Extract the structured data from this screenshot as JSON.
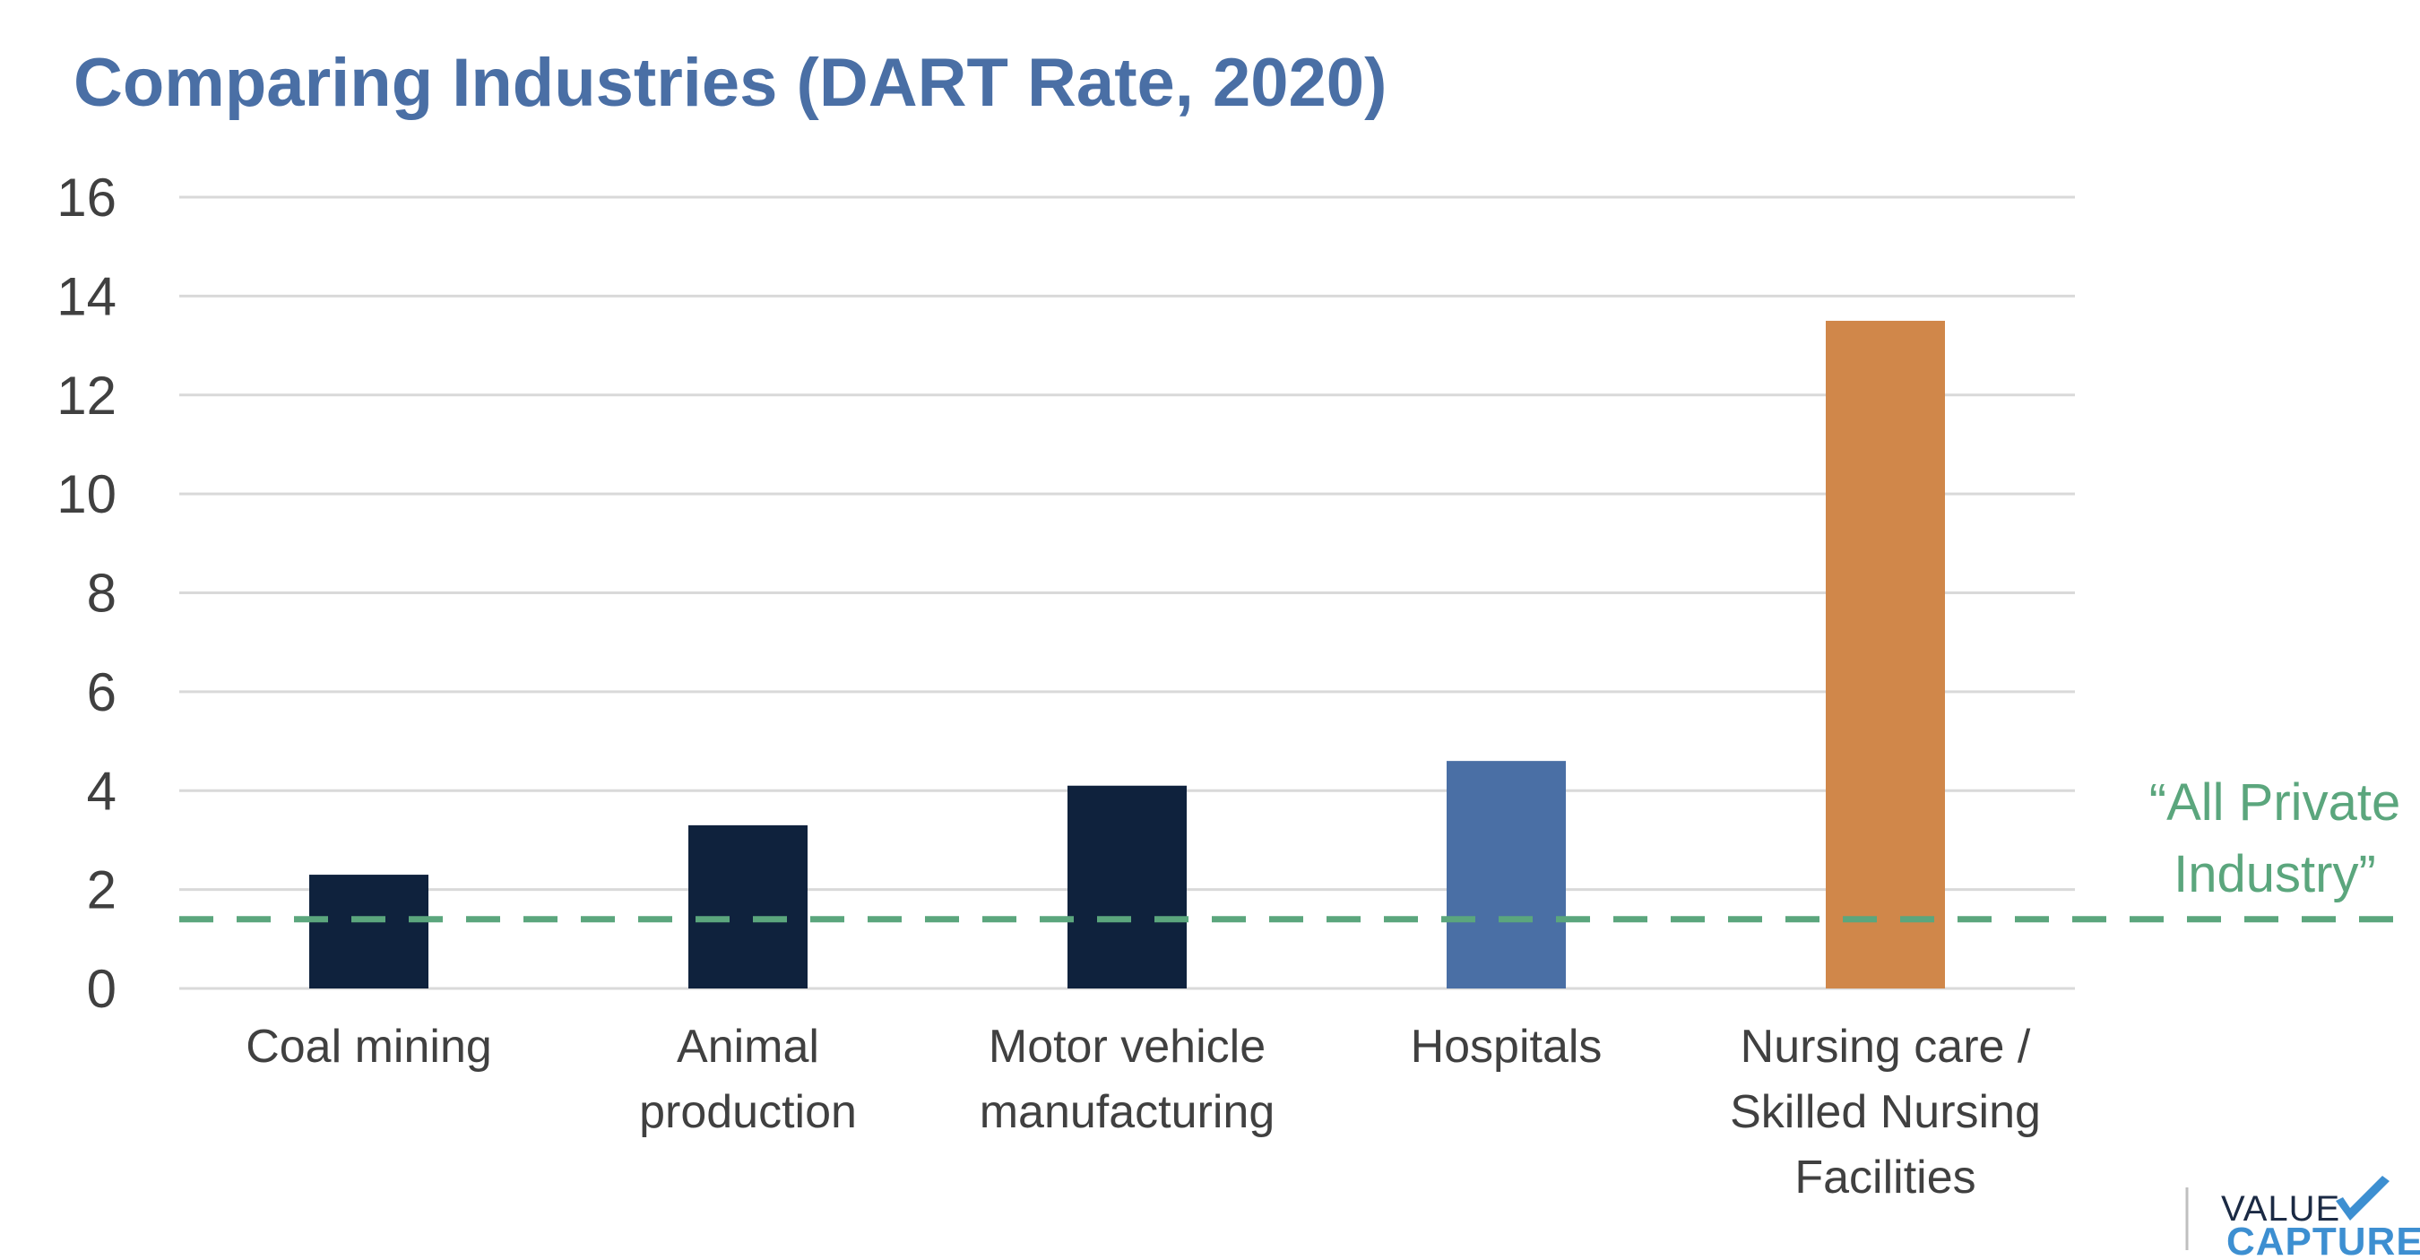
{
  "chart_data": {
    "type": "bar",
    "title": "Comparing Industries (DART Rate, 2020)",
    "categories": [
      [
        "Coal mining"
      ],
      [
        "Animal",
        "production"
      ],
      [
        "Motor vehicle",
        "manufacturing"
      ],
      [
        "Hospitals"
      ],
      [
        "Nursing care /",
        "Skilled Nursing",
        "Facilities"
      ]
    ],
    "values": [
      2.3,
      3.3,
      4.1,
      4.6,
      13.5
    ],
    "bar_colors": [
      "#0f223d",
      "#0f223d",
      "#0f223d",
      "#4a6fa5",
      "#d0874a"
    ],
    "ylim": [
      0,
      16
    ],
    "yticks": [
      0,
      2,
      4,
      6,
      8,
      10,
      12,
      14,
      16
    ],
    "grid": true,
    "reference_line": {
      "value": 1.4,
      "label_lines": [
        "“All Private",
        "Industry”"
      ],
      "color": "#5ba67d",
      "style": "dashed"
    },
    "xlabel": "",
    "ylabel": ""
  },
  "colors": {
    "title": "#4a6fa5",
    "grid": "#d9d9d9",
    "axis_text": "#404040"
  },
  "logo": {
    "line1": "VALUE",
    "line2": "CAPTURE",
    "line1_color": "#1b2a44",
    "line2_color": "#3d8fd1",
    "check_color": "#3d8fd1"
  }
}
